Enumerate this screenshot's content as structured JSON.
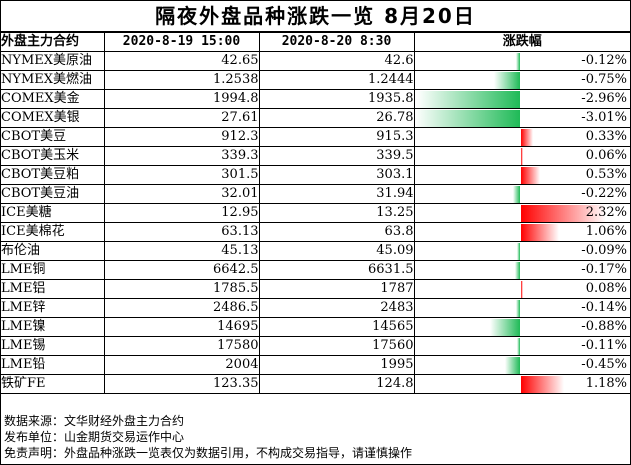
{
  "title": "隔夜外盘品种涨跌一览 8月20日",
  "headers": {
    "name": "外盘主力合约",
    "date1": "2020-8-19 15:00",
    "date2": "2020-8-20 8:30",
    "change": "涨跌幅"
  },
  "colors": {
    "negative": "#1fba57",
    "positive": "#ff0000"
  },
  "rows": [
    {
      "name": "NYMEX美原油",
      "v1": "42.65",
      "v2": "42.6",
      "chg": "-0.12%"
    },
    {
      "name": "NYMEX美燃油",
      "v1": "1.2538",
      "v2": "1.2444",
      "chg": "-0.75%"
    },
    {
      "name": "COMEX美金",
      "v1": "1994.8",
      "v2": "1935.8",
      "chg": "-2.96%"
    },
    {
      "name": "COMEX美银",
      "v1": "27.61",
      "v2": "26.78",
      "chg": "-3.01%"
    },
    {
      "name": "CBOT美豆",
      "v1": "912.3",
      "v2": "915.3",
      "chg": "0.33%"
    },
    {
      "name": "CBOT美玉米",
      "v1": "339.3",
      "v2": "339.5",
      "chg": "0.06%"
    },
    {
      "name": "CBOT美豆粕",
      "v1": "301.5",
      "v2": "303.1",
      "chg": "0.53%"
    },
    {
      "name": "CBOT美豆油",
      "v1": "32.01",
      "v2": "31.94",
      "chg": "-0.22%"
    },
    {
      "name": "ICE美糖",
      "v1": "12.95",
      "v2": "13.25",
      "chg": "2.32%"
    },
    {
      "name": "ICE美棉花",
      "v1": "63.13",
      "v2": "63.8",
      "chg": "1.06%"
    },
    {
      "name": "布伦油",
      "v1": "45.13",
      "v2": "45.09",
      "chg": "-0.09%"
    },
    {
      "name": "LME铜",
      "v1": "6642.5",
      "v2": "6631.5",
      "chg": "-0.17%"
    },
    {
      "name": "LME铝",
      "v1": "1785.5",
      "v2": "1787",
      "chg": "0.08%"
    },
    {
      "name": "LME锌",
      "v1": "2486.5",
      "v2": "2483",
      "chg": "-0.14%"
    },
    {
      "name": "LME镍",
      "v1": "14695",
      "v2": "14565",
      "chg": "-0.88%"
    },
    {
      "name": "LME锡",
      "v1": "17580",
      "v2": "17560",
      "chg": "-0.11%"
    },
    {
      "name": "LME铅",
      "v1": "2004",
      "v2": "1995",
      "chg": "-0.45%"
    },
    {
      "name": "铁矿FE",
      "v1": "123.35",
      "v2": "124.8",
      "chg": "1.18%"
    }
  ],
  "footer": {
    "source": "数据来源：文华财经外盘主力合约",
    "publisher": "发布单位：山金期货交易运作中心",
    "disclaimer": "免责声明：外盘品种涨跌一览表仅为数据引用，不构成交易指导，请谨慎操作"
  },
  "chart_data": {
    "type": "bar",
    "title": "隔夜外盘品种涨跌一览 8月20日",
    "categories": [
      "NYMEX美原油",
      "NYMEX美燃油",
      "COMEX美金",
      "COMEX美银",
      "CBOT美豆",
      "CBOT美玉米",
      "CBOT美豆粕",
      "CBOT美豆油",
      "ICE美糖",
      "ICE美棉花",
      "布伦油",
      "LME铜",
      "LME铝",
      "LME锌",
      "LME镍",
      "LME锡",
      "LME铅",
      "铁矿FE"
    ],
    "values": [
      -0.12,
      -0.75,
      -2.96,
      -3.01,
      0.33,
      0.06,
      0.53,
      -0.22,
      2.32,
      1.06,
      -0.09,
      -0.17,
      0.08,
      -0.14,
      -0.88,
      -0.11,
      -0.45,
      1.18
    ],
    "series": [
      {
        "name": "2020-8-19 15:00",
        "values": [
          42.65,
          1.2538,
          1994.8,
          27.61,
          912.3,
          339.3,
          301.5,
          32.01,
          12.95,
          63.13,
          45.13,
          6642.5,
          1785.5,
          2486.5,
          14695,
          17580,
          2004,
          123.35
        ]
      },
      {
        "name": "2020-8-20 8:30",
        "values": [
          42.6,
          1.2444,
          1935.8,
          26.78,
          915.3,
          339.5,
          303.1,
          31.94,
          13.25,
          63.8,
          45.09,
          6631.5,
          1787,
          2483,
          14565,
          17560,
          1995,
          124.8
        ]
      }
    ],
    "ylabel": "涨跌幅"
  }
}
